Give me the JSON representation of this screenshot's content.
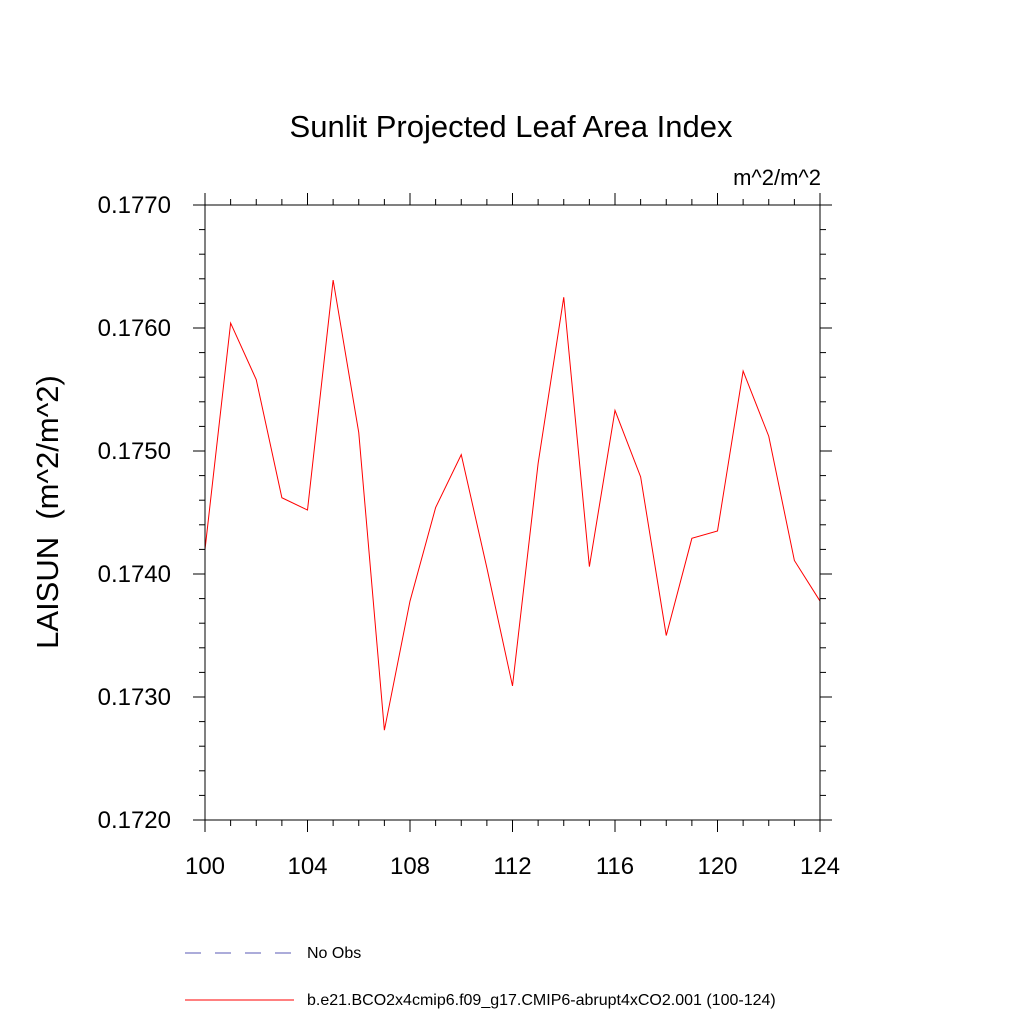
{
  "chart_data": {
    "type": "line",
    "title": "Sunlit Projected Leaf Area Index",
    "units": "m^2/m^2",
    "xlabel": "",
    "ylabel": "LAISUN  (m^2/m^2)",
    "xlim": [
      100,
      124
    ],
    "ylim": [
      0.172,
      0.177
    ],
    "x_ticks": [
      100,
      104,
      108,
      112,
      116,
      120,
      124
    ],
    "x_tick_labels": [
      "100",
      "104",
      "108",
      "112",
      "116",
      "120",
      "124"
    ],
    "y_ticks": [
      0.172,
      0.173,
      0.174,
      0.175,
      0.176,
      0.177
    ],
    "y_tick_labels": [
      "0.1720",
      "0.1730",
      "0.1740",
      "0.1750",
      "0.1760",
      "0.1770"
    ],
    "series": [
      {
        "name": "b.e21.BCO2x4cmip6.f09_g17.CMIP6-abrupt4xCO2.001 (100-124)",
        "color": "#ff0000",
        "dash": "solid",
        "x": [
          100,
          101,
          102,
          103,
          104,
          105,
          106,
          107,
          108,
          109,
          110,
          111,
          112,
          113,
          114,
          115,
          116,
          117,
          118,
          119,
          120,
          121,
          122,
          123,
          124
        ],
        "values": [
          0.1742,
          0.17604,
          0.17558,
          0.17462,
          0.17452,
          0.17639,
          0.17515,
          0.17273,
          0.17378,
          0.17454,
          0.17497,
          0.17405,
          0.17309,
          0.1749,
          0.17625,
          0.17406,
          0.17533,
          0.17479,
          0.1735,
          0.17429,
          0.17435,
          0.17565,
          0.17512,
          0.17411,
          0.17378
        ]
      }
    ],
    "legend": [
      {
        "label": "No Obs",
        "color": "#5a5ab4",
        "dash": "dashed"
      },
      {
        "label": "b.e21.BCO2x4cmip6.f09_g17.CMIP6-abrupt4xCO2.001 (100-124)",
        "color": "#ff0000",
        "dash": "solid"
      }
    ],
    "legend_position": "bottom",
    "grid": false
  }
}
